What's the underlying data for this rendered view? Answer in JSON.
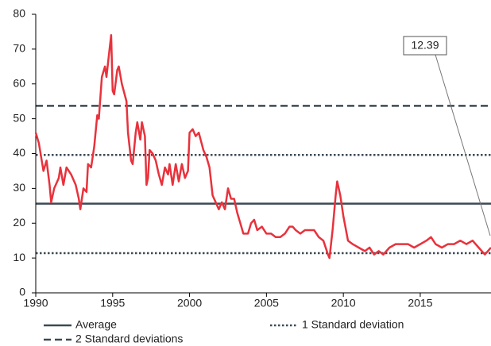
{
  "chart_data": {
    "type": "line",
    "color": "#e8323c",
    "xlim": [
      1990,
      2019.6
    ],
    "xticks": [
      1990,
      1995,
      2000,
      2005,
      2010,
      2015
    ],
    "ylim": [
      0,
      80
    ],
    "yticks": [
      0,
      10,
      20,
      30,
      40,
      50,
      60,
      70,
      80
    ],
    "x": [
      1990.0,
      1990.2,
      1990.5,
      1990.7,
      1990.9,
      1991.0,
      1991.2,
      1991.5,
      1991.6,
      1991.8,
      1992.0,
      1992.3,
      1992.6,
      1992.8,
      1992.9,
      1993.1,
      1993.3,
      1993.4,
      1993.6,
      1993.8,
      1994.0,
      1994.1,
      1994.3,
      1994.5,
      1994.6,
      1994.8,
      1994.9,
      1995.0,
      1995.1,
      1995.3,
      1995.4,
      1995.6,
      1995.9,
      1996.0,
      1996.2,
      1996.3,
      1996.5,
      1996.6,
      1996.8,
      1996.9,
      1997.1,
      1997.2,
      1997.3,
      1997.4,
      1997.6,
      1997.8,
      1998.0,
      1998.2,
      1998.4,
      1998.6,
      1998.7,
      1998.9,
      1999.1,
      1999.3,
      1999.5,
      1999.7,
      1999.9,
      2000.0,
      2000.2,
      2000.4,
      2000.6,
      2000.9,
      2001.1,
      2001.3,
      2001.5,
      2001.7,
      2001.9,
      2002.1,
      2002.3,
      2002.5,
      2002.7,
      2002.9,
      2003.1,
      2003.3,
      2003.5,
      2003.8,
      2004.0,
      2004.2,
      2004.4,
      2004.7,
      2005.0,
      2005.3,
      2005.6,
      2005.9,
      2006.2,
      2006.5,
      2006.7,
      2006.9,
      2007.2,
      2007.5,
      2007.8,
      2008.1,
      2008.4,
      2008.7,
      2009.0,
      2009.1,
      2009.3,
      2009.5,
      2009.6,
      2009.8,
      2010.0,
      2010.3,
      2010.6,
      2011.0,
      2011.4,
      2011.7,
      2012.0,
      2012.3,
      2012.6,
      2013.0,
      2013.4,
      2013.8,
      2014.2,
      2014.6,
      2015.0,
      2015.4,
      2015.7,
      2016.0,
      2016.4,
      2016.8,
      2017.2,
      2017.6,
      2018.0,
      2018.4,
      2018.8,
      2019.2,
      2019.6
    ],
    "values": [
      46,
      43,
      35,
      38,
      31,
      26,
      30,
      33,
      36,
      31,
      36,
      34,
      31,
      27,
      24,
      30,
      29,
      37,
      36,
      42,
      51,
      50,
      62,
      65,
      62,
      70,
      74,
      58,
      57,
      64,
      65,
      60,
      55,
      46,
      38,
      37,
      46,
      49,
      44,
      49,
      45,
      31,
      33,
      41,
      40,
      38,
      34,
      31,
      36,
      34,
      37,
      31,
      37,
      32,
      37,
      33,
      35,
      46,
      47,
      45,
      46,
      41,
      39,
      36,
      28,
      26,
      24,
      26,
      24,
      30,
      27,
      27,
      23,
      20,
      17,
      17,
      20,
      21,
      18,
      19,
      17,
      17,
      16,
      16,
      17,
      19,
      19,
      18,
      17,
      18,
      18,
      18,
      16,
      15,
      11,
      10,
      18,
      28,
      32,
      28,
      22,
      15,
      14,
      13,
      12,
      13,
      11,
      12,
      11,
      13,
      14,
      14,
      14,
      13,
      14,
      15,
      16,
      14,
      13,
      14,
      14,
      15,
      14,
      15,
      13,
      11,
      13
    ],
    "reference_lines": [
      {
        "name": "Average",
        "values": [
          25.6
        ],
        "color": "#3c4a55",
        "style": "solid"
      },
      {
        "name": "2 Standard deviations",
        "values": [
          53.7
        ],
        "color": "#3c4a55",
        "style": "dashed"
      },
      {
        "name": "1 Standard deviation",
        "values": [
          39.6,
          11.4
        ],
        "color": "#3c4a55",
        "style": "dotted"
      }
    ],
    "annotation": {
      "text": "12.39"
    }
  }
}
